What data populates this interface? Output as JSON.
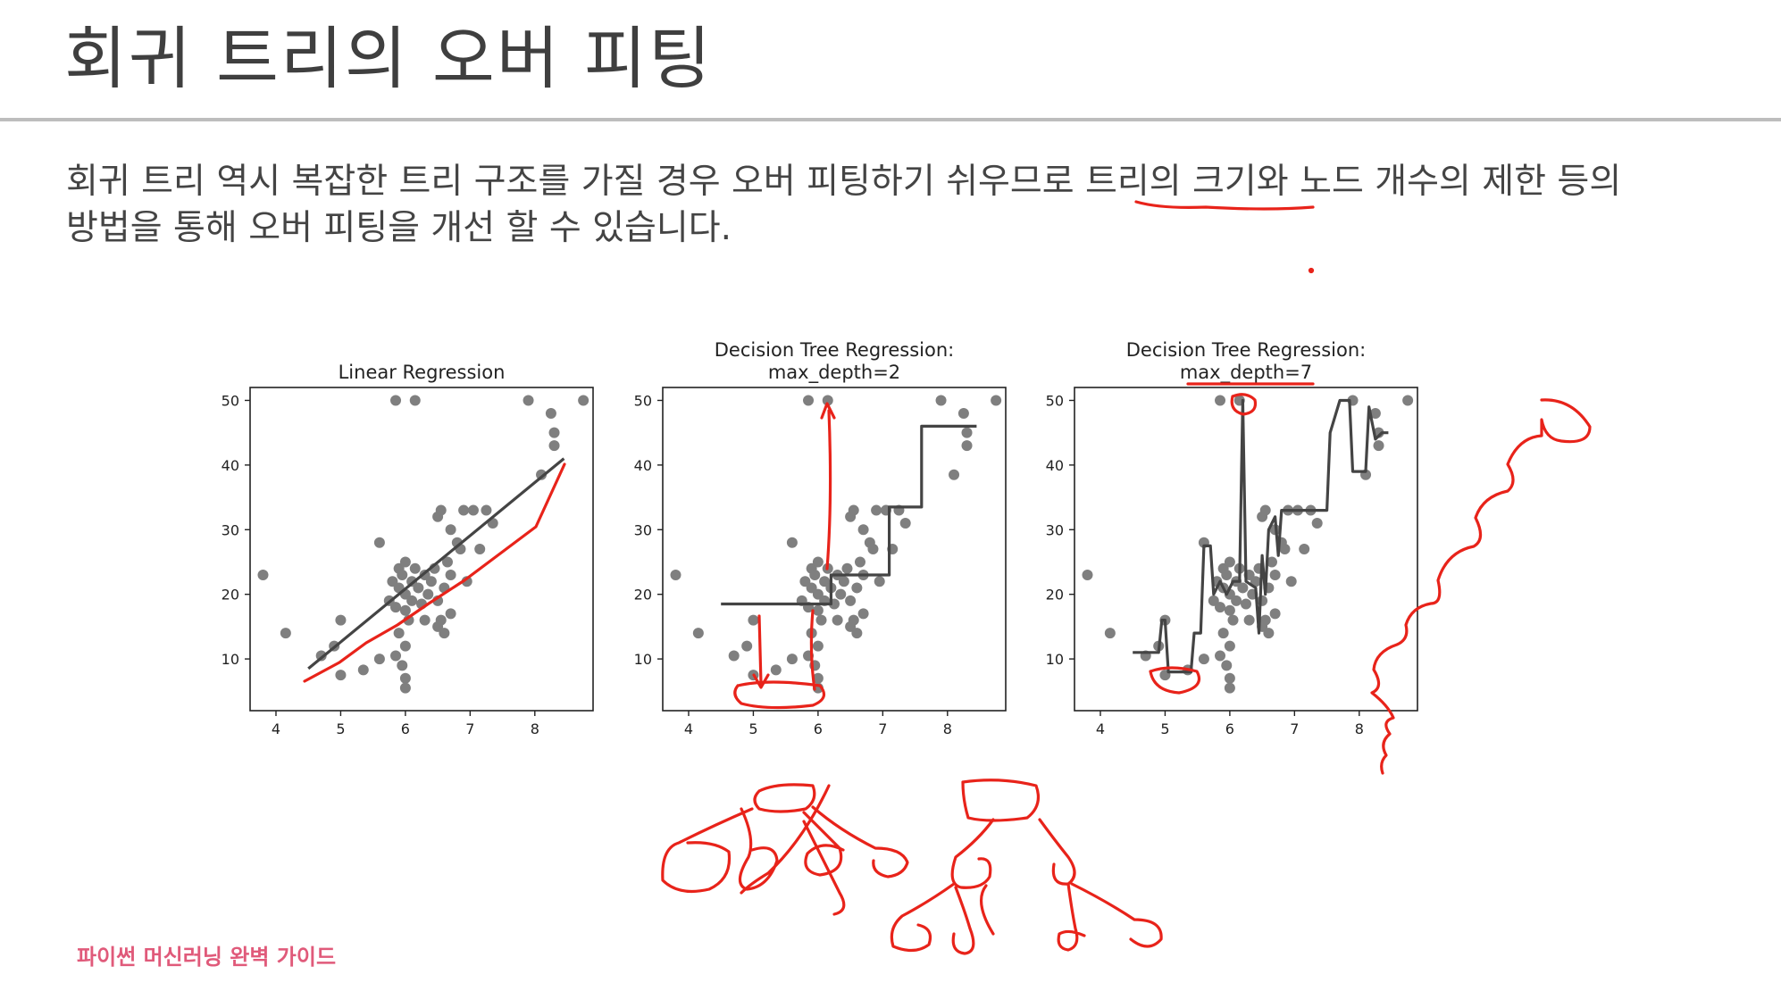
{
  "slide": {
    "title": "회귀 트리의 오버 피팅",
    "body_line1": "회귀 트리 역시 복잡한 트리 구조를 가질 경우 오버 피팅하기 쉬우므로 트리의 크기와 노드 개수의 제한 등의",
    "body_line2": "방법을 통해 오버 피팅을 개선 할 수 있습니다.",
    "footer": "파이썬 머신러닝 완벽 가이드"
  },
  "colors": {
    "points": "#7f7f7f",
    "fit_line": "#444444",
    "annotation": "#e8231a",
    "footer": "#e05a7a"
  },
  "chart_data": [
    {
      "type": "scatter",
      "title": "Linear Regression",
      "xlim": [
        3.6,
        8.9
      ],
      "ylim": [
        2,
        52
      ],
      "xticks": [
        4,
        5,
        6,
        7,
        8
      ],
      "yticks": [
        10,
        20,
        30,
        40,
        50
      ],
      "points": [
        [
          3.8,
          23
        ],
        [
          4.15,
          14
        ],
        [
          4.7,
          10.5
        ],
        [
          4.9,
          12
        ],
        [
          5.0,
          16
        ],
        [
          5.0,
          7.5
        ],
        [
          5.35,
          8.3
        ],
        [
          5.6,
          28
        ],
        [
          5.6,
          10
        ],
        [
          5.75,
          19
        ],
        [
          5.8,
          22
        ],
        [
          5.85,
          18
        ],
        [
          5.9,
          21
        ],
        [
          5.9,
          24
        ],
        [
          5.95,
          23
        ],
        [
          6.0,
          17.5
        ],
        [
          6.0,
          20
        ],
        [
          6.0,
          25
        ],
        [
          6.05,
          16
        ],
        [
          6.1,
          22
        ],
        [
          6.1,
          19
        ],
        [
          6.15,
          24
        ],
        [
          6.2,
          21
        ],
        [
          6.25,
          18.5
        ],
        [
          6.3,
          23
        ],
        [
          6.35,
          20
        ],
        [
          6.4,
          22
        ],
        [
          6.45,
          24
        ],
        [
          6.5,
          19
        ],
        [
          6.55,
          16
        ],
        [
          6.6,
          21
        ],
        [
          6.65,
          25
        ],
        [
          6.7,
          23
        ],
        [
          6.5,
          32
        ],
        [
          6.55,
          33
        ],
        [
          6.7,
          30
        ],
        [
          6.8,
          28
        ],
        [
          6.85,
          27
        ],
        [
          6.9,
          33
        ],
        [
          6.95,
          22
        ],
        [
          7.05,
          33
        ],
        [
          7.15,
          27
        ],
        [
          7.25,
          33
        ],
        [
          7.35,
          31
        ],
        [
          5.9,
          14
        ],
        [
          6.0,
          12
        ],
        [
          5.95,
          9
        ],
        [
          6.0,
          7
        ],
        [
          6.0,
          5.5
        ],
        [
          5.85,
          10.5
        ],
        [
          6.3,
          16
        ],
        [
          6.5,
          15
        ],
        [
          6.6,
          14
        ],
        [
          6.7,
          17
        ],
        [
          5.85,
          50
        ],
        [
          6.15,
          50
        ],
        [
          7.9,
          50
        ],
        [
          8.75,
          50
        ],
        [
          8.25,
          48
        ],
        [
          8.3,
          45
        ],
        [
          8.3,
          43
        ],
        [
          8.1,
          38.5
        ]
      ],
      "fit_line": [
        [
          4.5,
          8.5
        ],
        [
          8.45,
          41
        ]
      ]
    },
    {
      "type": "scatter",
      "title": "Decision Tree Regression:\nmax_depth=2",
      "xlim": [
        3.6,
        8.9
      ],
      "ylim": [
        2,
        52
      ],
      "xticks": [
        4,
        5,
        6,
        7,
        8
      ],
      "yticks": [
        10,
        20,
        30,
        40,
        50
      ],
      "points": [
        [
          3.8,
          23
        ],
        [
          4.15,
          14
        ],
        [
          4.7,
          10.5
        ],
        [
          4.9,
          12
        ],
        [
          5.0,
          16
        ],
        [
          5.0,
          7.5
        ],
        [
          5.35,
          8.3
        ],
        [
          5.6,
          28
        ],
        [
          5.6,
          10
        ],
        [
          5.75,
          19
        ],
        [
          5.8,
          22
        ],
        [
          5.85,
          18
        ],
        [
          5.9,
          21
        ],
        [
          5.9,
          24
        ],
        [
          5.95,
          23
        ],
        [
          6.0,
          17.5
        ],
        [
          6.0,
          20
        ],
        [
          6.0,
          25
        ],
        [
          6.05,
          16
        ],
        [
          6.1,
          22
        ],
        [
          6.1,
          19
        ],
        [
          6.15,
          24
        ],
        [
          6.2,
          21
        ],
        [
          6.25,
          18.5
        ],
        [
          6.3,
          23
        ],
        [
          6.35,
          20
        ],
        [
          6.4,
          22
        ],
        [
          6.45,
          24
        ],
        [
          6.5,
          19
        ],
        [
          6.55,
          16
        ],
        [
          6.6,
          21
        ],
        [
          6.65,
          25
        ],
        [
          6.7,
          23
        ],
        [
          6.5,
          32
        ],
        [
          6.55,
          33
        ],
        [
          6.7,
          30
        ],
        [
          6.8,
          28
        ],
        [
          6.85,
          27
        ],
        [
          6.9,
          33
        ],
        [
          6.95,
          22
        ],
        [
          7.05,
          33
        ],
        [
          7.15,
          27
        ],
        [
          7.25,
          33
        ],
        [
          7.35,
          31
        ],
        [
          5.9,
          14
        ],
        [
          6.0,
          12
        ],
        [
          5.95,
          9
        ],
        [
          6.0,
          7
        ],
        [
          6.0,
          5.5
        ],
        [
          5.85,
          10.5
        ],
        [
          6.3,
          16
        ],
        [
          6.5,
          15
        ],
        [
          6.6,
          14
        ],
        [
          6.7,
          17
        ],
        [
          5.85,
          50
        ],
        [
          6.15,
          50
        ],
        [
          7.9,
          50
        ],
        [
          8.75,
          50
        ],
        [
          8.25,
          48
        ],
        [
          8.3,
          45
        ],
        [
          8.3,
          43
        ],
        [
          8.1,
          38.5
        ]
      ],
      "fit_line": [
        [
          4.5,
          18.5
        ],
        [
          6.2,
          18.5
        ],
        [
          6.2,
          23
        ],
        [
          7.1,
          23
        ],
        [
          7.1,
          33.5
        ],
        [
          7.6,
          33.5
        ],
        [
          7.6,
          46
        ],
        [
          8.45,
          46
        ]
      ]
    },
    {
      "type": "scatter",
      "title": "Decision Tree Regression:\nmax_depth=7",
      "xlim": [
        3.6,
        8.9
      ],
      "ylim": [
        2,
        52
      ],
      "xticks": [
        4,
        5,
        6,
        7,
        8
      ],
      "yticks": [
        10,
        20,
        30,
        40,
        50
      ],
      "points": [
        [
          3.8,
          23
        ],
        [
          4.15,
          14
        ],
        [
          4.7,
          10.5
        ],
        [
          4.9,
          12
        ],
        [
          5.0,
          16
        ],
        [
          5.0,
          7.5
        ],
        [
          5.35,
          8.3
        ],
        [
          5.6,
          28
        ],
        [
          5.6,
          10
        ],
        [
          5.75,
          19
        ],
        [
          5.8,
          22
        ],
        [
          5.85,
          18
        ],
        [
          5.9,
          21
        ],
        [
          5.9,
          24
        ],
        [
          5.95,
          23
        ],
        [
          6.0,
          17.5
        ],
        [
          6.0,
          20
        ],
        [
          6.0,
          25
        ],
        [
          6.05,
          16
        ],
        [
          6.1,
          22
        ],
        [
          6.1,
          19
        ],
        [
          6.15,
          24
        ],
        [
          6.2,
          21
        ],
        [
          6.25,
          18.5
        ],
        [
          6.3,
          23
        ],
        [
          6.35,
          20
        ],
        [
          6.4,
          22
        ],
        [
          6.45,
          24
        ],
        [
          6.5,
          19
        ],
        [
          6.55,
          16
        ],
        [
          6.6,
          21
        ],
        [
          6.65,
          25
        ],
        [
          6.7,
          23
        ],
        [
          6.5,
          32
        ],
        [
          6.55,
          33
        ],
        [
          6.7,
          30
        ],
        [
          6.8,
          28
        ],
        [
          6.85,
          27
        ],
        [
          6.9,
          33
        ],
        [
          6.95,
          22
        ],
        [
          7.05,
          33
        ],
        [
          7.15,
          27
        ],
        [
          7.25,
          33
        ],
        [
          7.35,
          31
        ],
        [
          5.9,
          14
        ],
        [
          6.0,
          12
        ],
        [
          5.95,
          9
        ],
        [
          6.0,
          7
        ],
        [
          6.0,
          5.5
        ],
        [
          5.85,
          10.5
        ],
        [
          6.3,
          16
        ],
        [
          6.5,
          15
        ],
        [
          6.6,
          14
        ],
        [
          6.7,
          17
        ],
        [
          5.85,
          50
        ],
        [
          6.15,
          50
        ],
        [
          7.9,
          50
        ],
        [
          8.75,
          50
        ],
        [
          8.25,
          48
        ],
        [
          8.3,
          45
        ],
        [
          8.3,
          43
        ],
        [
          8.1,
          38.5
        ]
      ],
      "fit_line": [
        [
          4.5,
          11
        ],
        [
          4.9,
          11
        ],
        [
          4.95,
          16
        ],
        [
          5.0,
          16
        ],
        [
          5.05,
          8
        ],
        [
          5.4,
          8
        ],
        [
          5.45,
          14
        ],
        [
          5.55,
          14
        ],
        [
          5.6,
          27.5
        ],
        [
          5.7,
          27.5
        ],
        [
          5.75,
          20
        ],
        [
          5.85,
          22
        ],
        [
          5.95,
          20
        ],
        [
          6.05,
          22
        ],
        [
          6.15,
          22
        ],
        [
          6.2,
          50
        ],
        [
          6.25,
          22
        ],
        [
          6.4,
          21
        ],
        [
          6.45,
          14
        ],
        [
          6.5,
          26
        ],
        [
          6.55,
          20
        ],
        [
          6.6,
          30
        ],
        [
          6.7,
          32
        ],
        [
          6.75,
          26
        ],
        [
          6.8,
          33
        ],
        [
          6.9,
          33
        ],
        [
          7.0,
          33
        ],
        [
          7.2,
          33
        ],
        [
          7.3,
          33
        ],
        [
          7.5,
          33
        ],
        [
          7.55,
          45
        ],
        [
          7.7,
          50
        ],
        [
          7.85,
          50
        ],
        [
          7.9,
          39
        ],
        [
          8.1,
          39
        ],
        [
          8.15,
          49
        ],
        [
          8.25,
          44
        ],
        [
          8.35,
          45
        ],
        [
          8.45,
          45
        ]
      ]
    }
  ]
}
